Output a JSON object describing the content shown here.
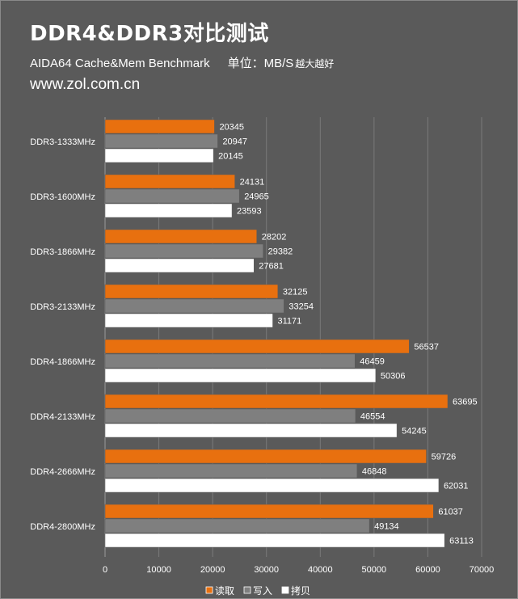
{
  "header": {
    "title": "DDR4&DDR3对比测试",
    "subtitle": "AIDA64  Cache&Mem Benchmark",
    "unit": "单位：MB/S",
    "note": "越大越好",
    "source": "www.zol.com.cn"
  },
  "colors": {
    "background": "#5a5a5a",
    "read": "#e8700f",
    "write": "#7f7f7f",
    "copy": "#ffffff",
    "grid": "#7a7a7a"
  },
  "chart_data": {
    "type": "bar",
    "orientation": "horizontal",
    "categories": [
      "DDR3-1333MHz",
      "DDR3-1600MHz",
      "DDR3-1866MHz",
      "DDR3-2133MHz",
      "DDR4-1866MHz",
      "DDR4-2133MHz",
      "DDR4-2666MHz",
      "DDR4-2800MHz"
    ],
    "series": [
      {
        "name": "读取",
        "color": "#e8700f",
        "values": [
          20345,
          24131,
          28202,
          32125,
          56537,
          63695,
          59726,
          61037
        ]
      },
      {
        "name": "写入",
        "color": "#7f7f7f",
        "values": [
          20947,
          24965,
          29382,
          33254,
          46459,
          46554,
          46848,
          49134
        ]
      },
      {
        "name": "拷贝",
        "color": "#ffffff",
        "values": [
          20145,
          23593,
          27681,
          31171,
          50306,
          54245,
          62031,
          63113
        ]
      }
    ],
    "xlim": [
      0,
      70000
    ],
    "xticks": [
      0,
      10000,
      20000,
      30000,
      40000,
      50000,
      60000,
      70000
    ],
    "grid": true,
    "legend_position": "bottom"
  }
}
